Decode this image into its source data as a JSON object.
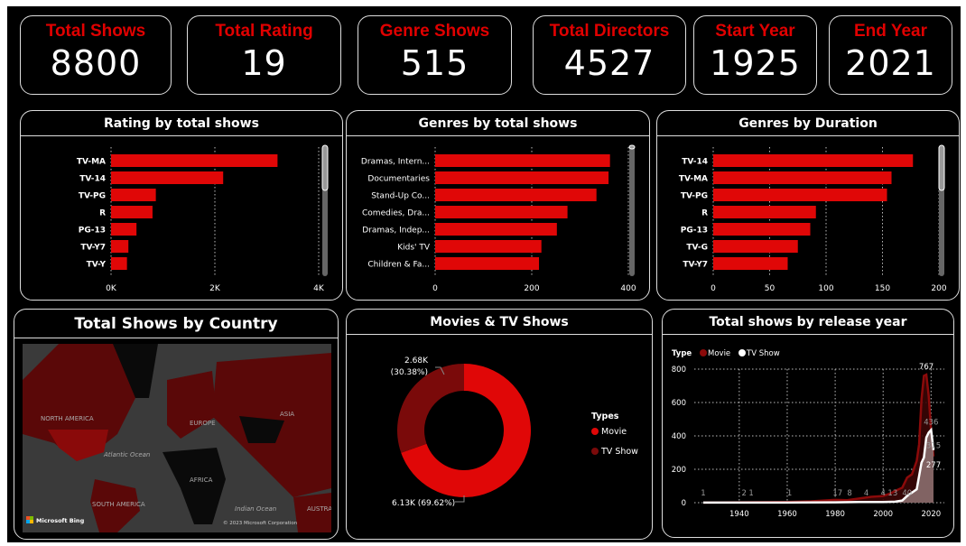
{
  "kpis": [
    {
      "label": "Total Shows",
      "value": "8800"
    },
    {
      "label": "Total Rating",
      "value": "19"
    },
    {
      "label": "Genre Shows",
      "value": "515"
    },
    {
      "label": "Total Directors",
      "value": "4527"
    },
    {
      "label": "Start Year",
      "value": "1925"
    },
    {
      "label": "End Year",
      "value": "2021"
    }
  ],
  "colors": {
    "accent": "#e00707",
    "dark_red": "#7a0a0a",
    "background": "#000000",
    "text": "#ffffff"
  },
  "map": {
    "title": "Total Shows by Country",
    "labels": [
      "NORTH AMERICA",
      "EUROPE",
      "ASIA",
      "Atlantic Ocean",
      "AFRICA",
      "SOUTH AMERICA",
      "Indian Ocean",
      "AUSTRA"
    ],
    "brand": "Microsoft Bing",
    "copyright": "© 2023 Microsoft Corporation"
  },
  "chart_data": [
    {
      "type": "bar",
      "orientation": "horizontal",
      "title": "Rating by total shows",
      "categories": [
        "TV-MA",
        "TV-14",
        "TV-PG",
        "R",
        "PG-13",
        "TV-Y7",
        "TV-Y"
      ],
      "values": [
        3207,
        2160,
        863,
        799,
        490,
        334,
        307
      ],
      "xlim": [
        0,
        4000
      ],
      "ticks": [
        "0K",
        "2K",
        "4K"
      ],
      "tick_values": [
        0,
        2000,
        4000
      ],
      "grid": true
    },
    {
      "type": "bar",
      "orientation": "horizontal",
      "title": "Genres by total shows",
      "categories": [
        "Dramas, Intern...",
        "Documentaries",
        "Stand-Up Co...",
        "Comedies, Dra...",
        "Dramas, Indep...",
        "Kids' TV",
        "Children & Fa..."
      ],
      "values": [
        362,
        359,
        334,
        274,
        252,
        220,
        215
      ],
      "xlim": [
        0,
        400
      ],
      "ticks": [
        "0",
        "200",
        "400"
      ],
      "tick_values": [
        0,
        200,
        400
      ],
      "grid": true
    },
    {
      "type": "bar",
      "orientation": "horizontal",
      "title": "Genres by Duration",
      "categories": [
        "TV-14",
        "TV-MA",
        "TV-PG",
        "R",
        "PG-13",
        "TV-G",
        "TV-Y7"
      ],
      "values": [
        177,
        158,
        154,
        91,
        86,
        75,
        66
      ],
      "xlim": [
        0,
        200
      ],
      "ticks": [
        "0",
        "50",
        "100",
        "150",
        "200"
      ],
      "tick_values": [
        0,
        50,
        100,
        150,
        200
      ],
      "grid": true
    },
    {
      "type": "pie",
      "donut": true,
      "title": "Movies & TV Shows",
      "legend_title": "Types",
      "slices": [
        {
          "name": "Movie",
          "value": 6130,
          "label": "6.13K (69.62%)",
          "color": "#e00707"
        },
        {
          "name": "TV Show",
          "value": 2680,
          "label": "2.68K\n(30.38%)",
          "color": "#7a0a0a"
        }
      ],
      "legend": "right"
    },
    {
      "type": "area",
      "title": "Total shows by release year",
      "legend_title": "Type",
      "legend": "top-left",
      "xlim": [
        1925,
        2021
      ],
      "ylim": [
        0,
        800
      ],
      "xticks": [
        1940,
        1960,
        1980,
        2000,
        2020
      ],
      "yticks": [
        0,
        200,
        400,
        600,
        800
      ],
      "grid": true,
      "series": [
        {
          "name": "Movie",
          "color": "#8b0a0a",
          "x": [
            1925,
            1940,
            1960,
            1970,
            1980,
            1985,
            1990,
            1995,
            2000,
            2003,
            2005,
            2008,
            2010,
            2012,
            2014,
            2015,
            2016,
            2017,
            2018,
            2019,
            2020,
            2021
          ],
          "y": [
            1,
            2,
            4,
            8,
            17,
            15,
            25,
            35,
            40,
            55,
            70,
            90,
            150,
            170,
            250,
            350,
            620,
            760,
            767,
            640,
            430,
            277
          ]
        },
        {
          "name": "TV Show",
          "color": "#ffffff",
          "x": [
            1925,
            1940,
            1960,
            1980,
            1990,
            2000,
            2005,
            2008,
            2010,
            2012,
            2014,
            2015,
            2016,
            2017,
            2018,
            2019,
            2020,
            2021
          ],
          "y": [
            1,
            1,
            1,
            2,
            4,
            4,
            6,
            13,
            40,
            60,
            80,
            160,
            240,
            270,
            390,
            420,
            436,
            315
          ]
        }
      ],
      "data_labels": [
        {
          "x": 1925,
          "y": 1,
          "text": "1"
        },
        {
          "x": 1942,
          "y": 2,
          "text": "2"
        },
        {
          "x": 1945,
          "y": 1,
          "text": "1"
        },
        {
          "x": 1961,
          "y": 1,
          "text": "1"
        },
        {
          "x": 1981,
          "y": 17,
          "text": "17"
        },
        {
          "x": 1986,
          "y": 8,
          "text": "8"
        },
        {
          "x": 1993,
          "y": 4,
          "text": "4"
        },
        {
          "x": 2000,
          "y": 4,
          "text": "4"
        },
        {
          "x": 2004,
          "y": 13,
          "text": "13"
        },
        {
          "x": 2010,
          "y": 40,
          "text": "40"
        },
        {
          "x": 2018,
          "y": 767,
          "text": "767"
        },
        {
          "x": 2020,
          "y": 436,
          "text": "436"
        },
        {
          "x": 2021,
          "y": 315,
          "text": "315"
        },
        {
          "x": 2021,
          "y": 277,
          "text": "277"
        }
      ]
    }
  ]
}
